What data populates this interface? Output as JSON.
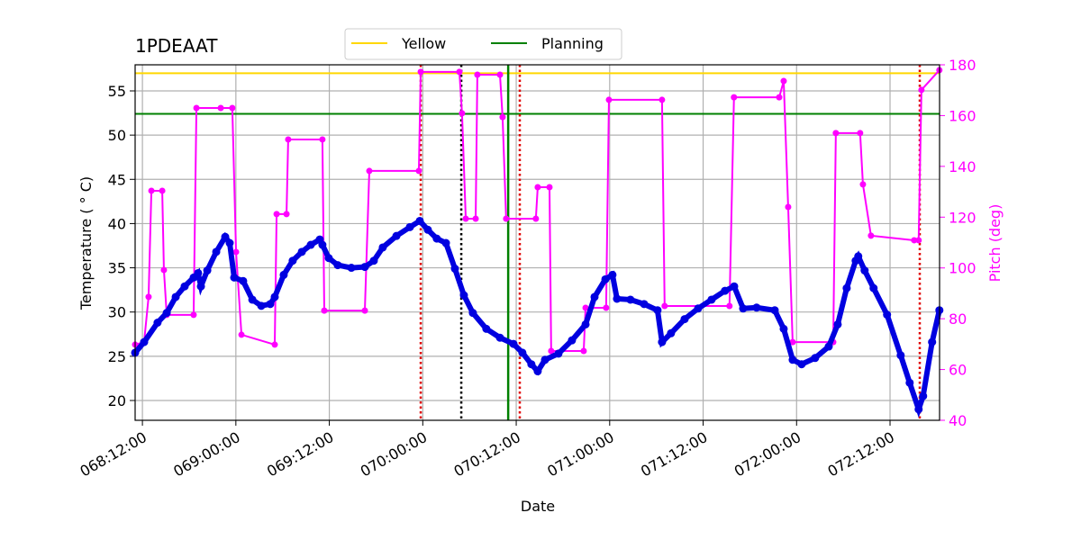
{
  "chart_data": {
    "type": "line",
    "title": "1PDEAAT",
    "xlabel": "Date",
    "ylabel": "Temperature ( ° C)",
    "y2label": "Pitch (deg)",
    "y2color": "#ff00ff",
    "grid": true,
    "legend": "top",
    "xlim": [
      68.461,
      72.765
    ],
    "xticks": [
      {
        "value": 68.5,
        "label": "068:12:00"
      },
      {
        "value": 69.0,
        "label": "069:00:00"
      },
      {
        "value": 69.5,
        "label": "069:12:00"
      },
      {
        "value": 70.0,
        "label": "070:00:00"
      },
      {
        "value": 70.5,
        "label": "070:12:00"
      },
      {
        "value": 71.0,
        "label": "071:00:00"
      },
      {
        "value": 71.5,
        "label": "071:12:00"
      },
      {
        "value": 72.0,
        "label": "072:00:00"
      },
      {
        "value": 72.5,
        "label": "072:12:00"
      }
    ],
    "ylim": [
      17.76,
      57.95
    ],
    "yticks": [
      20,
      25,
      30,
      35,
      40,
      45,
      50,
      55
    ],
    "y2lim": [
      40,
      180
    ],
    "y2ticks": [
      40,
      60,
      80,
      100,
      120,
      140,
      160,
      180
    ],
    "hlines": [
      {
        "label": "Yellow",
        "value": 57,
        "color": "#ffd700"
      },
      {
        "label": "Planning",
        "value": 52.4,
        "color": "#008000"
      }
    ],
    "vlines": [
      {
        "value": 69.989,
        "color": "#e00000",
        "style": "dotted"
      },
      {
        "value": 70.206,
        "color": "#000000",
        "style": "dotted"
      },
      {
        "value": 70.457,
        "color": "#008000",
        "style": "solid"
      },
      {
        "value": 70.519,
        "color": "#e00000",
        "style": "dotted"
      },
      {
        "value": 72.659,
        "color": "#e00000",
        "style": "dotted"
      }
    ],
    "series": [
      {
        "color": "#0000e0",
        "x": [
          68.461,
          68.509,
          68.581,
          68.63,
          68.678,
          68.726,
          68.774,
          68.798,
          68.813,
          68.847,
          68.895,
          68.943,
          68.967,
          68.991,
          69.039,
          69.088,
          69.136,
          69.184,
          69.208,
          69.256,
          69.304,
          69.353,
          69.401,
          69.449,
          69.463,
          69.497,
          69.545,
          69.618,
          69.69,
          69.738,
          69.786,
          69.859,
          69.931,
          69.984,
          70.027,
          70.075,
          70.124,
          70.172,
          70.22,
          70.268,
          70.34,
          70.413,
          70.485,
          70.533,
          70.581,
          70.615,
          70.654,
          70.726,
          70.798,
          70.871,
          70.919,
          70.977,
          71.015,
          71.039,
          71.111,
          71.184,
          71.256,
          71.28,
          71.328,
          71.401,
          71.473,
          71.545,
          71.617,
          71.666,
          71.714,
          71.786,
          71.883,
          71.931,
          71.979,
          72.027,
          72.099,
          72.172,
          72.22,
          72.268,
          72.316,
          72.33,
          72.364,
          72.412,
          72.484,
          72.557,
          72.605,
          72.653,
          72.677,
          72.725,
          72.764
        ],
        "values": [
          25.4,
          26.6,
          28.8,
          29.9,
          31.7,
          32.9,
          33.9,
          34.4,
          32.9,
          34.7,
          36.8,
          38.5,
          37.8,
          33.9,
          33.5,
          31.4,
          30.7,
          30.9,
          31.7,
          34.2,
          35.8,
          36.8,
          37.6,
          38.2,
          37.6,
          36.1,
          35.3,
          35.0,
          35.1,
          35.8,
          37.3,
          38.6,
          39.6,
          40.3,
          39.3,
          38.3,
          37.8,
          34.9,
          31.9,
          29.9,
          28.1,
          27.1,
          26.4,
          25.4,
          24.1,
          23.3,
          24.6,
          25.3,
          26.8,
          28.6,
          31.7,
          33.7,
          34.2,
          31.5,
          31.4,
          30.9,
          30.2,
          26.6,
          27.6,
          29.2,
          30.4,
          31.4,
          32.4,
          32.9,
          30.4,
          30.5,
          30.2,
          28.1,
          24.6,
          24.1,
          24.8,
          26.1,
          28.6,
          32.7,
          35.8,
          36.3,
          34.7,
          32.7,
          29.7,
          25.1,
          22.0,
          19.0,
          20.5,
          26.6,
          30.2
        ]
      },
      {
        "color": "#ff00ff",
        "axis": "y2",
        "x": [
          68.461,
          68.509,
          68.533,
          68.548,
          68.606,
          68.615,
          68.63,
          68.774,
          68.789,
          68.919,
          68.981,
          69.001,
          69.03,
          69.208,
          69.218,
          69.271,
          69.28,
          69.463,
          69.473,
          69.69,
          69.714,
          69.979,
          69.989,
          70.196,
          70.21,
          70.23,
          70.283,
          70.292,
          70.413,
          70.427,
          70.446,
          70.605,
          70.615,
          70.678,
          70.687,
          70.861,
          70.871,
          70.981,
          70.996,
          71.28,
          71.294,
          71.641,
          71.665,
          71.907,
          71.931,
          71.955,
          71.979,
          72.196,
          72.21,
          72.34,
          72.355,
          72.398,
          72.629,
          72.653,
          72.668,
          72.764
        ],
        "values": [
          69.8,
          70.8,
          88.6,
          130.4,
          130.4,
          99.2,
          81.5,
          81.5,
          163.0,
          163.0,
          163.0,
          106.3,
          73.7,
          69.8,
          121.2,
          121.2,
          150.6,
          150.6,
          83.2,
          83.2,
          138.2,
          138.2,
          177.2,
          177.2,
          160.9,
          119.4,
          119.4,
          176.1,
          176.1,
          159.4,
          119.4,
          119.4,
          131.8,
          131.8,
          67.3,
          67.3,
          84.3,
          84.3,
          166.2,
          166.2,
          85.0,
          85.0,
          167.2,
          167.2,
          173.6,
          124.0,
          70.8,
          70.8,
          153.1,
          153.1,
          132.9,
          112.7,
          110.9,
          110.9,
          170.1,
          177.9
        ]
      }
    ]
  }
}
